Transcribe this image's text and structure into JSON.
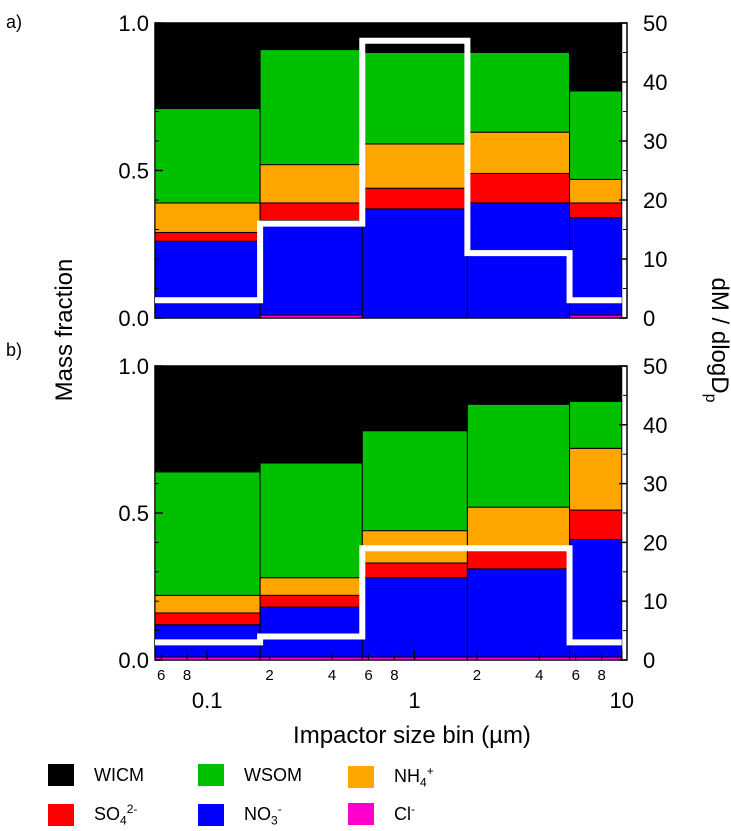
{
  "panel_labels": [
    "a)",
    "b)"
  ],
  "y_left_label": "Mass fraction",
  "y_right_label": "dM / dlogD",
  "y_right_label_sub": "p",
  "x_label": "Impactor size bin (µm)",
  "x_major_ticks": [
    "0.1",
    "1",
    "10"
  ],
  "x_minor_tick_labels": [
    "6",
    "8",
    "2",
    "4",
    "6",
    "8",
    "2",
    "4",
    "6",
    "8"
  ],
  "left_ticks": [
    "0.0",
    "0.5",
    "1.0"
  ],
  "right_ticks": [
    "0",
    "10",
    "20",
    "30",
    "40",
    "50"
  ],
  "legend": {
    "wicm": {
      "label": "WICM",
      "color": "#000000"
    },
    "wsom": {
      "label": "WSOM",
      "color": "#00c000"
    },
    "nh4": {
      "label": "NH",
      "sub": "4",
      "sup": "+",
      "color": "#ffa500"
    },
    "so4": {
      "label": "SO",
      "sub": "4",
      "sup": "2-",
      "color": "#ff0000"
    },
    "no3": {
      "label": "NO",
      "sub": "3",
      "sup": "-",
      "color": "#0000ff"
    },
    "cl": {
      "label": "Cl",
      "sub": "",
      "sup": "-",
      "color": "#ff00cc"
    }
  },
  "chart_data": [
    {
      "type": "bar",
      "panel": "a)",
      "stacked_order": [
        "Cl-",
        "NO3-",
        "SO42-",
        "NH4+",
        "WSOM",
        "WICM"
      ],
      "bin_edges_um": [
        0.056,
        0.18,
        0.56,
        1.8,
        5.6,
        10
      ],
      "series": [
        {
          "name": "Cl-",
          "color": "#ff00cc",
          "values": [
            0.0,
            0.01,
            0.0,
            0.0,
            0.01
          ]
        },
        {
          "name": "NO3-",
          "color": "#0000ff",
          "values": [
            0.26,
            0.32,
            0.37,
            0.39,
            0.33
          ]
        },
        {
          "name": "SO42-",
          "color": "#ff0000",
          "values": [
            0.03,
            0.06,
            0.07,
            0.1,
            0.05
          ]
        },
        {
          "name": "NH4+",
          "color": "#ffa500",
          "values": [
            0.1,
            0.13,
            0.15,
            0.14,
            0.08
          ]
        },
        {
          "name": "WSOM",
          "color": "#00c000",
          "values": [
            0.32,
            0.39,
            0.31,
            0.27,
            0.3
          ]
        },
        {
          "name": "WICM",
          "color": "#000000",
          "values": [
            0.29,
            0.09,
            0.1,
            0.1,
            0.23
          ]
        }
      ],
      "dm_dlogdp": [
        3,
        16,
        47,
        11,
        3
      ],
      "ylim": [
        0,
        1.0
      ],
      "y2lim": [
        0,
        50
      ]
    },
    {
      "type": "bar",
      "panel": "b)",
      "stacked_order": [
        "Cl-",
        "NO3-",
        "SO42-",
        "NH4+",
        "WSOM",
        "WICM"
      ],
      "bin_edges_um": [
        0.056,
        0.18,
        0.56,
        1.8,
        5.6,
        10
      ],
      "series": [
        {
          "name": "Cl-",
          "color": "#ff00cc",
          "values": [
            0.01,
            0.01,
            0.01,
            0.01,
            0.01
          ]
        },
        {
          "name": "NO3-",
          "color": "#0000ff",
          "values": [
            0.11,
            0.17,
            0.27,
            0.3,
            0.4
          ]
        },
        {
          "name": "SO42-",
          "color": "#ff0000",
          "values": [
            0.04,
            0.04,
            0.05,
            0.07,
            0.1
          ]
        },
        {
          "name": "NH4+",
          "color": "#ffa500",
          "values": [
            0.06,
            0.06,
            0.11,
            0.14,
            0.21
          ]
        },
        {
          "name": "WSOM",
          "color": "#00c000",
          "values": [
            0.42,
            0.39,
            0.34,
            0.35,
            0.16
          ]
        },
        {
          "name": "WICM",
          "color": "#000000",
          "values": [
            0.36,
            0.33,
            0.22,
            0.13,
            0.12
          ]
        }
      ],
      "dm_dlogdp": [
        3,
        4,
        19,
        19,
        3
      ],
      "ylim": [
        0,
        1.0
      ],
      "y2lim": [
        0,
        50
      ]
    }
  ]
}
